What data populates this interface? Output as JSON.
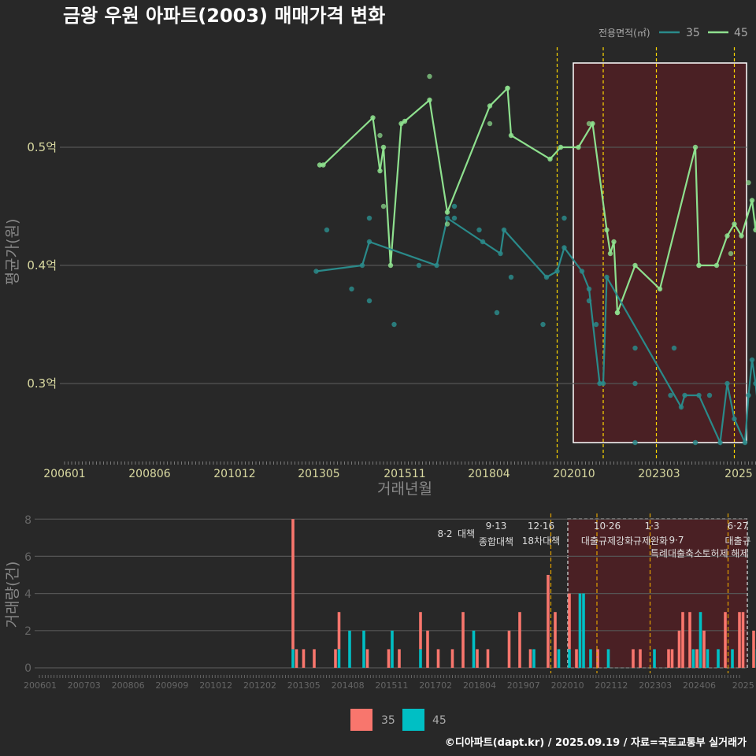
{
  "title": "금왕 우원 아파트(2003) 매매가격 변화",
  "legend": {
    "title": "전용면적(㎡)",
    "items": [
      "35",
      "45"
    ]
  },
  "colors": {
    "s35_line": "#2a8a8a",
    "s45_line": "#8ee08e",
    "bar35": "#f8766d",
    "bar45": "#00bfc4",
    "event_line": "#ffd700",
    "highlight": "#5a1f22"
  },
  "price_chart": {
    "ylabel": "평균가(원)",
    "xlabel": "거래년월",
    "y_ticks": [
      "0.3억",
      "0.4억",
      "0.5억"
    ],
    "x_ticks": [
      "200601",
      "200806",
      "201012",
      "201305",
      "201511",
      "201804",
      "202010",
      "202303",
      "2025"
    ]
  },
  "volume_chart": {
    "ylabel": "거래량(건)",
    "y_ticks": [
      "0",
      "2",
      "4",
      "6",
      "8"
    ],
    "x_ticks": [
      "200601",
      "200703",
      "200806",
      "200909",
      "201012",
      "201202",
      "201305",
      "201408",
      "201511",
      "201702",
      "201804",
      "201907",
      "202010",
      "202112",
      "202303",
      "202406",
      "2025"
    ]
  },
  "events": [
    {
      "date": "8·2",
      "name": "대책"
    },
    {
      "date": "9·13",
      "name": "종합대책"
    },
    {
      "date": "12·16",
      "name": "18차대책"
    },
    {
      "date": "10·26",
      "name": "대출규제강화"
    },
    {
      "date": "1·3",
      "name": "규제완화"
    },
    {
      "date": "9·7",
      "name": "특례대출축소"
    },
    {
      "date": "",
      "name": "토허제 해제"
    },
    {
      "date": "6·27",
      "name": "대출규"
    }
  ],
  "bottom_legend": [
    "35",
    "45"
  ],
  "caption": "©디아파트(dapt.kr) / 2025.09.19 / 자료=국토교통부 실거래가",
  "chart_data": [
    {
      "type": "line",
      "title": "금왕 우원 아파트(2003) 매매가격 변화",
      "xlabel": "거래년월",
      "ylabel": "평균가(원)",
      "x_range": [
        "2006-01",
        "2025-09"
      ],
      "ylim": [
        0.235,
        0.57
      ],
      "y_unit": "억",
      "series": [
        {
          "name": "45",
          "points": [
            [
              "2012-01",
              0.485
            ],
            [
              "2012-02",
              0.485
            ],
            [
              "2013-04",
              0.525
            ],
            [
              "2013-06",
              0.48
            ],
            [
              "2013-07",
              0.5
            ],
            [
              "2013-09",
              0.4
            ],
            [
              "2013-12",
              0.52
            ],
            [
              "2014-01",
              0.522
            ],
            [
              "2014-08",
              0.54
            ],
            [
              "2015-01",
              0.445
            ],
            [
              "2016-01",
              0.535
            ],
            [
              "2016-06",
              0.55
            ],
            [
              "2016-07",
              0.51
            ],
            [
              "2017-06",
              0.49
            ],
            [
              "2017-09",
              0.5
            ],
            [
              "2018-02",
              0.5
            ],
            [
              "2018-06",
              0.52
            ],
            [
              "2018-10",
              0.43
            ],
            [
              "2018-11",
              0.41
            ],
            [
              "2018-12",
              0.42
            ],
            [
              "2019-01",
              0.36
            ],
            [
              "2019-06",
              0.4
            ],
            [
              "2020-01",
              0.38
            ],
            [
              "2020-11",
              0.5
            ],
            [
              "2020-12",
              0.4
            ],
            [
              "2021-05",
              0.4
            ],
            [
              "2021-08",
              0.425
            ],
            [
              "2021-10",
              0.435
            ],
            [
              "2021-12",
              0.425
            ],
            [
              "2022-03",
              0.455
            ],
            [
              "2022-04",
              0.43
            ],
            [
              "2022-05",
              0.46
            ],
            [
              "2022-07",
              0.48
            ],
            [
              "2022-09",
              0.47
            ],
            [
              "2022-12",
              0.51
            ],
            [
              "2023-02",
              0.47
            ],
            [
              "2023-04",
              0.46
            ],
            [
              "2023-06",
              0.49
            ],
            [
              "2023-08",
              0.445
            ],
            [
              "2023-11",
              0.48
            ],
            [
              "2024-01",
              0.49
            ],
            [
              "2024-03",
              0.46
            ],
            [
              "2024-05",
              0.48
            ],
            [
              "2024-07",
              0.5
            ],
            [
              "2024-09",
              0.49
            ],
            [
              "2024-12",
              0.5
            ],
            [
              "2025-01",
              0.47
            ],
            [
              "2025-03",
              0.465
            ],
            [
              "2025-05",
              0.43
            ],
            [
              "2025-08",
              0.42
            ],
            [
              "2025-10",
              0.425
            ],
            [
              "2025-11",
              0.43
            ]
          ]
        },
        {
          "name": "35",
          "points": [
            [
              "2011-12",
              0.395
            ],
            [
              "2013-01",
              0.4
            ],
            [
              "2013-03",
              0.42
            ],
            [
              "2014-10",
              0.4
            ],
            [
              "2015-01",
              0.44
            ],
            [
              "2015-11",
              0.42
            ],
            [
              "2016-04",
              0.41
            ],
            [
              "2016-05",
              0.43
            ],
            [
              "2017-05",
              0.39
            ],
            [
              "2017-08",
              0.395
            ],
            [
              "2017-10",
              0.415
            ],
            [
              "2018-03",
              0.395
            ],
            [
              "2018-05",
              0.38
            ],
            [
              "2018-08",
              0.3
            ],
            [
              "2018-09",
              0.3
            ],
            [
              "2018-10",
              0.39
            ],
            [
              "2020-07",
              0.28
            ],
            [
              "2020-08",
              0.29
            ],
            [
              "2020-12",
              0.29
            ],
            [
              "2021-06",
              0.25
            ],
            [
              "2021-08",
              0.3
            ],
            [
              "2021-10",
              0.27
            ],
            [
              "2022-01",
              0.25
            ],
            [
              "2022-02",
              0.29
            ],
            [
              "2022-03",
              0.32
            ],
            [
              "2022-04",
              0.3
            ],
            [
              "2022-05",
              0.27
            ],
            [
              "2022-07",
              0.33
            ],
            [
              "2022-09",
              0.31
            ],
            [
              "2022-12",
              0.35
            ],
            [
              "2023-02",
              0.37
            ],
            [
              "2023-04",
              0.385
            ],
            [
              "2023-05",
              0.36
            ],
            [
              "2023-06",
              0.39
            ],
            [
              "2023-07",
              0.33
            ],
            [
              "2023-09",
              0.4
            ],
            [
              "2023-10",
              0.38
            ],
            [
              "2023-12",
              0.395
            ],
            [
              "2024-02",
              0.37
            ],
            [
              "2024-04",
              0.4
            ],
            [
              "2024-05",
              0.37
            ],
            [
              "2024-07",
              0.39
            ],
            [
              "2024-09",
              0.38
            ],
            [
              "2024-10",
              0.35
            ],
            [
              "2024-11",
              0.38
            ],
            [
              "2024-12",
              0.28
            ],
            [
              "2025-01",
              0.38
            ],
            [
              "2025-03",
              0.4
            ],
            [
              "2025-05",
              0.35
            ],
            [
              "2025-06",
              0.38
            ],
            [
              "2025-08",
              0.395
            ],
            [
              "2025-10",
              0.33
            ],
            [
              "2025-11",
              0.4
            ],
            [
              "2025-12",
              0.36
            ]
          ]
        }
      ],
      "scatter_45": [
        [
          "2013-06",
          0.51
        ],
        [
          "2013-07",
          0.45
        ],
        [
          "2014-08",
          0.56
        ],
        [
          "2015-01",
          0.435
        ],
        [
          "2016-01",
          0.52
        ],
        [
          "2016-06",
          0.55
        ],
        [
          "2018-05",
          0.52
        ],
        [
          "2019-01",
          0.36
        ],
        [
          "2020-12",
          0.4
        ],
        [
          "2022-06",
          0.54
        ],
        [
          "2022-02",
          0.47
        ],
        [
          "2023-09",
          0.43
        ],
        [
          "2025-01",
          0.45
        ],
        [
          "2025-03",
          0.49
        ],
        [
          "2021-09",
          0.41
        ]
      ],
      "scatter_35": [
        [
          "2012-03",
          0.43
        ],
        [
          "2012-10",
          0.38
        ],
        [
          "2013-03",
          0.44
        ],
        [
          "2013-03",
          0.37
        ],
        [
          "2013-10",
          0.35
        ],
        [
          "2014-05",
          0.4
        ],
        [
          "2015-03",
          0.45
        ],
        [
          "2015-03",
          0.44
        ],
        [
          "2015-10",
          0.43
        ],
        [
          "2016-03",
          0.36
        ],
        [
          "2016-07",
          0.39
        ],
        [
          "2017-04",
          0.35
        ],
        [
          "2017-10",
          0.44
        ],
        [
          "2018-05",
          0.37
        ],
        [
          "2018-07",
          0.35
        ],
        [
          "2019-06",
          0.33
        ],
        [
          "2019-06",
          0.3
        ],
        [
          "2019-06",
          0.25
        ],
        [
          "2020-04",
          0.29
        ],
        [
          "2020-05",
          0.33
        ],
        [
          "2020-11",
          0.25
        ],
        [
          "2021-03",
          0.29
        ],
        [
          "2022-06",
          0.37
        ],
        [
          "2023-04",
          0.42
        ],
        [
          "2023-05",
          0.3
        ],
        [
          "2024-04",
          0.3
        ],
        [
          "2024-11",
          0.3
        ],
        [
          "2025-05",
          0.325
        ],
        [
          "2025-11",
          0.365
        ]
      ],
      "highlight_box": {
        "x": [
          "2020-10",
          "2025-12"
        ],
        "y": [
          0.25,
          0.57
        ]
      }
    },
    {
      "type": "bar",
      "ylabel": "거래량(건)",
      "ylim": [
        0,
        8
      ],
      "stacked": true,
      "series": [
        {
          "name": "45",
          "points": [
            [
              "2012-01",
              1
            ],
            [
              "2013-02",
              1
            ],
            [
              "2013-05",
              2
            ],
            [
              "2013-09",
              2
            ],
            [
              "2014-05",
              2
            ],
            [
              "2015-01",
              1
            ],
            [
              "2016-04",
              2
            ],
            [
              "2017-09",
              1
            ],
            [
              "2018-04",
              1
            ],
            [
              "2018-07",
              1
            ],
            [
              "2018-10",
              4
            ],
            [
              "2018-11",
              4
            ],
            [
              "2019-01",
              1
            ],
            [
              "2019-06",
              1
            ],
            [
              "2020-07",
              1
            ],
            [
              "2021-06",
              1
            ],
            [
              "2021-08",
              3
            ],
            [
              "2021-10",
              1
            ],
            [
              "2022-01",
              1
            ],
            [
              "2022-05",
              1
            ],
            [
              "2022-12",
              1
            ],
            [
              "2023-05",
              1
            ],
            [
              "2023-09",
              1
            ],
            [
              "2024-02",
              1
            ],
            [
              "2024-06",
              1
            ],
            [
              "2024-10",
              1
            ],
            [
              "2025-03",
              1
            ],
            [
              "2025-06",
              1
            ],
            [
              "2025-09",
              1
            ]
          ]
        },
        {
          "name": "35",
          "points": [
            [
              "2012-01",
              7
            ],
            [
              "2012-02",
              1
            ],
            [
              "2012-04",
              1
            ],
            [
              "2012-07",
              1
            ],
            [
              "2013-01",
              1
            ],
            [
              "2013-02",
              2
            ],
            [
              "2013-10",
              1
            ],
            [
              "2014-04",
              1
            ],
            [
              "2014-07",
              1
            ],
            [
              "2015-01",
              2
            ],
            [
              "2015-03",
              2
            ],
            [
              "2015-06",
              1
            ],
            [
              "2015-10",
              1
            ],
            [
              "2016-01",
              3
            ],
            [
              "2016-05",
              1
            ],
            [
              "2016-08",
              1
            ],
            [
              "2017-02",
              2
            ],
            [
              "2017-05",
              3
            ],
            [
              "2017-08",
              1
            ],
            [
              "2018-01",
              5
            ],
            [
              "2018-03",
              3
            ],
            [
              "2018-07",
              3
            ],
            [
              "2018-09",
              1
            ],
            [
              "2019-03",
              1
            ],
            [
              "2020-01",
              1
            ],
            [
              "2020-03",
              1
            ],
            [
              "2020-11",
              1
            ],
            [
              "2020-12",
              1
            ],
            [
              "2021-02",
              2
            ],
            [
              "2021-03",
              3
            ],
            [
              "2021-05",
              3
            ],
            [
              "2021-07",
              1
            ],
            [
              "2021-09",
              2
            ],
            [
              "2022-03",
              3
            ],
            [
              "2022-07",
              3
            ],
            [
              "2022-08",
              3
            ],
            [
              "2022-11",
              2
            ],
            [
              "2023-01",
              3
            ],
            [
              "2023-03",
              2
            ],
            [
              "2023-07",
              2
            ],
            [
              "2023-11",
              2
            ],
            [
              "2024-01",
              2
            ],
            [
              "2024-04",
              2
            ],
            [
              "2024-08",
              2
            ],
            [
              "2024-12",
              3
            ],
            [
              "2025-02",
              3
            ],
            [
              "2025-05",
              3
            ],
            [
              "2025-08",
              2
            ]
          ]
        }
      ]
    }
  ]
}
